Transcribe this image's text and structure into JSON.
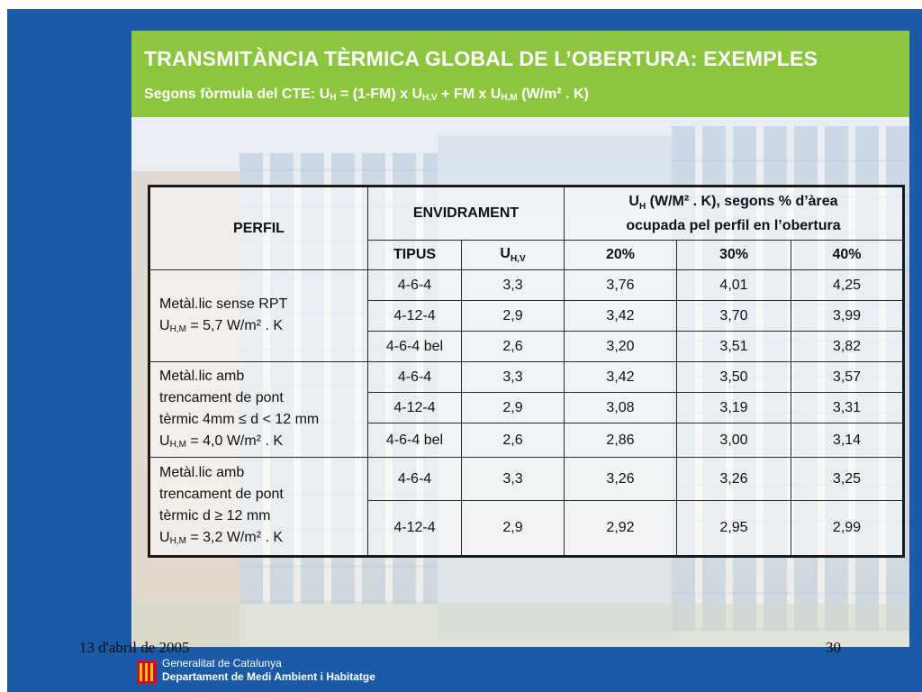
{
  "header": {
    "title": "TRANSMITÀNCIA TÈRMICA GLOBAL  DE L’OBERTURA: EXEMPLES",
    "subtitle_prefix": "Segons fòrmula del CTE: U",
    "subtitle_sub1": "H",
    "subtitle_mid1": " = (1-FM) x U",
    "subtitle_sub2": "H,V",
    "subtitle_mid2": " + FM x U",
    "subtitle_sub3": "H,M",
    "subtitle_suffix": " (W/m² . K)"
  },
  "table": {
    "col_perfil": "PERFIL",
    "col_envidrament": "ENVIDRAMENT",
    "col_uh_prefix": "U",
    "col_uh_sub": "H",
    "col_uh_suffix": " (W/M² . K), segons % d’àrea",
    "col_uh_line2": "ocupada pel perfil en l’obertura",
    "col_tipus": "TIPUS",
    "col_uhv_prefix": "U",
    "col_uhv_sub": "H,V",
    "col_20": "20%",
    "col_30": "30%",
    "col_40": "40%",
    "groups": [
      {
        "perfil_lines": [
          "Metàl.lic sense RPT"
        ],
        "perfil_u_prefix": "U",
        "perfil_u_sub": "H,M",
        "perfil_u_suffix": " = 5,7 W/m² . K",
        "rows": [
          {
            "tipus": "4-6-4",
            "uhv": "3,3",
            "p20": "3,76",
            "p30": "4,01",
            "p40": "4,25"
          },
          {
            "tipus": "4-12-4",
            "uhv": "2,9",
            "p20": "3,42",
            "p30": "3,70",
            "p40": "3,99"
          },
          {
            "tipus": "4-6-4 bel",
            "uhv": "2,6",
            "p20": "3,20",
            "p30": "3,51",
            "p40": "3,82"
          }
        ]
      },
      {
        "perfil_lines": [
          "Metàl.lic amb",
          "trencament de pont",
          "tèrmic 4mm ≤ d < 12 mm"
        ],
        "perfil_u_prefix": "U",
        "perfil_u_sub": "H,M",
        "perfil_u_suffix": " = 4,0 W/m² . K",
        "rows": [
          {
            "tipus": "4-6-4",
            "uhv": "3,3",
            "p20": "3,42",
            "p30": "3,50",
            "p40": "3,57"
          },
          {
            "tipus": "4-12-4",
            "uhv": "2,9",
            "p20": "3,08",
            "p30": "3,19",
            "p40": "3,31"
          },
          {
            "tipus": "4-6-4 bel",
            "uhv": "2,6",
            "p20": "2,86",
            "p30": "3,00",
            "p40": "3,14"
          }
        ]
      },
      {
        "perfil_lines": [
          "Metàl.lic amb",
          "trencament de pont",
          "tèrmic d ≥ 12 mm"
        ],
        "perfil_u_prefix": "U",
        "perfil_u_sub": "H,M",
        "perfil_u_suffix": " = 3,2 W/m² . K",
        "rows": [
          {
            "tipus": "4-6-4",
            "uhv": "3,3",
            "p20": "3,26",
            "p30": "3,26",
            "p40": "3,25"
          },
          {
            "tipus": "4-12-4",
            "uhv": "2,9",
            "p20": "2,92",
            "p30": "2,95",
            "p40": "2,99"
          }
        ]
      }
    ]
  },
  "footer": {
    "date": "13 d'abril de 2005",
    "page_number": "30",
    "org_line1": "Generalitat de Catalunya",
    "org_line2": "Departament de Medi Ambient i Habitatge"
  },
  "colors": {
    "frame_blue": "#1a5aa6",
    "header_green": "#8cc63f",
    "logo_red": "#c8102e",
    "logo_yellow": "#f2c200"
  }
}
